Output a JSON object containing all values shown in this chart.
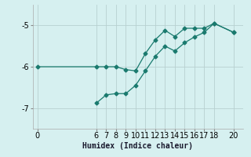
{
  "xlabel": "Humidex (Indice chaleur)",
  "line1_x": [
    0,
    6,
    7,
    8,
    9,
    10,
    11,
    12,
    13,
    14,
    15,
    16,
    17,
    18,
    20
  ],
  "line1_y": [
    -6.0,
    -6.0,
    -6.0,
    -6.0,
    -6.07,
    -6.1,
    -5.68,
    -5.35,
    -5.12,
    -5.27,
    -5.07,
    -5.07,
    -5.07,
    -4.95,
    -5.17
  ],
  "line2_x": [
    6,
    7,
    8,
    9,
    10,
    11,
    12,
    13,
    14,
    15,
    16,
    17,
    18,
    20
  ],
  "line2_y": [
    -6.88,
    -6.68,
    -6.65,
    -6.65,
    -6.45,
    -6.1,
    -5.75,
    -5.5,
    -5.62,
    -5.42,
    -5.28,
    -5.17,
    -4.95,
    -5.17
  ],
  "line_color": "#1a7a6e",
  "bg_color": "#d6f0f0",
  "grid_color": "#b8d0d0",
  "ylim": [
    -7.5,
    -4.5
  ],
  "xlim": [
    -0.5,
    21
  ],
  "yticks": [
    -7,
    -6,
    -5
  ],
  "xticks": [
    0,
    6,
    7,
    8,
    9,
    10,
    11,
    12,
    13,
    14,
    15,
    16,
    17,
    18,
    20
  ],
  "marker": "D",
  "markersize": 2.5,
  "linewidth": 0.9
}
